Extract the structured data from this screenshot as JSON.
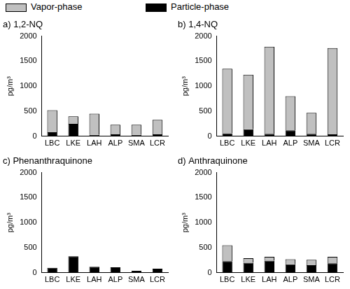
{
  "chart_data": [
    {
      "type": "bar",
      "title": "a) 1,2-NQ",
      "ylabel": "pg/m³",
      "stacked": true,
      "grid": false,
      "legend": "top",
      "categories": [
        "LBC",
        "LKE",
        "LAH",
        "ALP",
        "SMA",
        "LCR"
      ],
      "series": [
        {
          "name": "Vapor-phase",
          "color": "#c0c0c0",
          "values": [
            440,
            150,
            420,
            190,
            200,
            290
          ]
        },
        {
          "name": "Particle-phase",
          "color": "#000000",
          "values": [
            80,
            250,
            30,
            40,
            30,
            40
          ]
        }
      ],
      "ylim": [
        0,
        2000
      ],
      "yticks": [
        0,
        500,
        1000,
        1500,
        2000
      ]
    },
    {
      "type": "bar",
      "title": "b) 1,4-NQ",
      "ylabel": "pg/m³",
      "stacked": true,
      "grid": false,
      "categories": [
        "LBC",
        "LKE",
        "LAH",
        "ALP",
        "SMA",
        "LCR"
      ],
      "series": [
        {
          "name": "Vapor-phase",
          "color": "#c0c0c0",
          "values": [
            1290,
            1090,
            1740,
            680,
            420,
            1720
          ]
        },
        {
          "name": "Particle-phase",
          "color": "#000000",
          "values": [
            60,
            140,
            50,
            120,
            50,
            40
          ]
        }
      ],
      "ylim": [
        0,
        2000
      ],
      "yticks": [
        0,
        500,
        1000,
        1500,
        2000
      ]
    },
    {
      "type": "bar",
      "title": "c) Phenanthraquinone",
      "ylabel": "pg/m³",
      "stacked": true,
      "grid": false,
      "categories": [
        "LBC",
        "LKE",
        "LAH",
        "ALP",
        "SMA",
        "LCR"
      ],
      "series": [
        {
          "name": "Vapor-phase",
          "color": "#c0c0c0",
          "values": [
            0,
            0,
            0,
            0,
            0,
            0
          ]
        },
        {
          "name": "Particle-phase",
          "color": "#000000",
          "values": [
            100,
            330,
            120,
            110,
            40,
            80
          ]
        }
      ],
      "ylim": [
        0,
        2000
      ],
      "yticks": [
        0,
        500,
        1000,
        1500,
        2000
      ]
    },
    {
      "type": "bar",
      "title": "d) Anthraquinone",
      "ylabel": "pg/m³",
      "stacked": true,
      "grid": false,
      "categories": [
        "LBC",
        "LKE",
        "LAH",
        "ALP",
        "SMA",
        "LCR"
      ],
      "series": [
        {
          "name": "Vapor-phase",
          "color": "#c0c0c0",
          "values": [
            320,
            90,
            80,
            100,
            110,
            130
          ]
        },
        {
          "name": "Particle-phase",
          "color": "#000000",
          "values": [
            230,
            200,
            240,
            170,
            150,
            190
          ]
        }
      ],
      "ylim": [
        0,
        2000
      ],
      "yticks": [
        0,
        500,
        1000,
        1500,
        2000
      ]
    }
  ]
}
